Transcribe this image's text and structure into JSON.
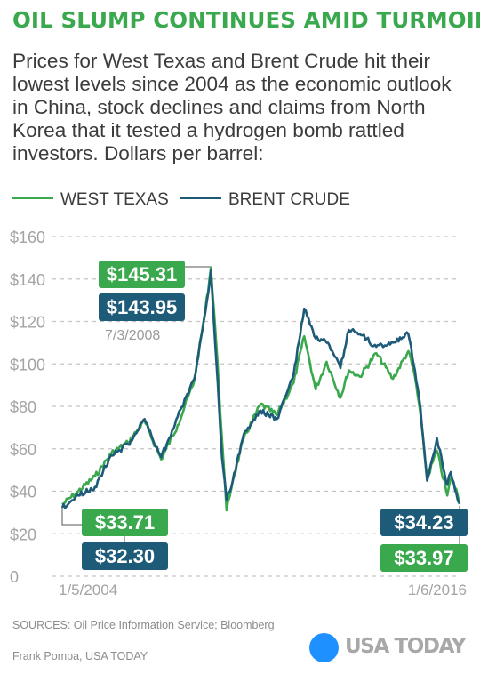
{
  "header": {
    "title": "OIL SLUMP CONTINUES AMID TURMOIL",
    "subtitle": "Prices for West Texas and Brent Crude hit their lowest levels since 2004 as the economic outlook in China, stock declines and claims from North Korea that it tested a hydrogen bomb rattled investors. Dollars per barrel:"
  },
  "colors": {
    "wti": "#3aa84d",
    "brent": "#1e5b78",
    "grid": "#c4c4c4",
    "axis_text": "#a3a3a3"
  },
  "chart_data": {
    "type": "line",
    "x_labels": [
      "1/5/2004",
      "1/6/2016"
    ],
    "y_ticks": [
      "0",
      "$20",
      "$40",
      "$60",
      "$80",
      "$100",
      "$120",
      "$140",
      "$160"
    ],
    "ylim": [
      0,
      160
    ],
    "grid": true,
    "legend_position": "top",
    "x_range": [
      "2004-01-05",
      "2016-01-06"
    ],
    "x": [
      "2004-01-05",
      "2004-07-01",
      "2005-01-01",
      "2005-07-01",
      "2006-01-01",
      "2006-07-01",
      "2007-01-01",
      "2007-07-01",
      "2008-01-01",
      "2008-05-01",
      "2008-07-03",
      "2008-09-01",
      "2008-11-01",
      "2008-12-22",
      "2009-03-01",
      "2009-07-01",
      "2010-01-01",
      "2010-07-01",
      "2011-01-01",
      "2011-04-29",
      "2011-09-01",
      "2012-01-01",
      "2012-06-01",
      "2012-09-01",
      "2013-01-01",
      "2013-07-01",
      "2014-01-01",
      "2014-06-20",
      "2014-09-01",
      "2014-11-01",
      "2015-01-13",
      "2015-05-01",
      "2015-08-24",
      "2015-10-01",
      "2015-12-01",
      "2016-01-06"
    ],
    "series": [
      {
        "name": "WEST TEXAS",
        "values": [
          33.71,
          40,
          47,
          58,
          63,
          73,
          55,
          71,
          92,
          125,
          145.31,
          109,
          65,
          31,
          45,
          65,
          81,
          76,
          91,
          113,
          88,
          101,
          84,
          97,
          94,
          105,
          93,
          106,
          94,
          76,
          46,
          59,
          38,
          46,
          41,
          33.97
        ]
      },
      {
        "name": "BRENT CRUDE",
        "values": [
          32.3,
          38,
          42,
          57,
          62,
          74,
          56,
          75,
          93,
          124,
          143.95,
          101,
          56,
          36,
          45,
          67,
          78,
          74,
          95,
          126,
          112,
          110,
          98,
          116,
          114,
          108,
          110,
          114,
          97,
          79,
          45,
          65,
          43,
          49,
          39,
          34.23
        ]
      }
    ],
    "annotations": {
      "peak": {
        "date": "7/3/2008",
        "wti": "$145.31",
        "brent": "$143.95"
      },
      "start": {
        "wti": "$33.71",
        "brent": "$32.30"
      },
      "end": {
        "brent": "$34.23",
        "wti": "$33.97"
      }
    }
  },
  "footer": {
    "sources": "SOURCES:  Oil Price Information Service; Bloomberg",
    "credit": "Frank Pompa, USA TODAY",
    "logo": "USA TODAY"
  }
}
